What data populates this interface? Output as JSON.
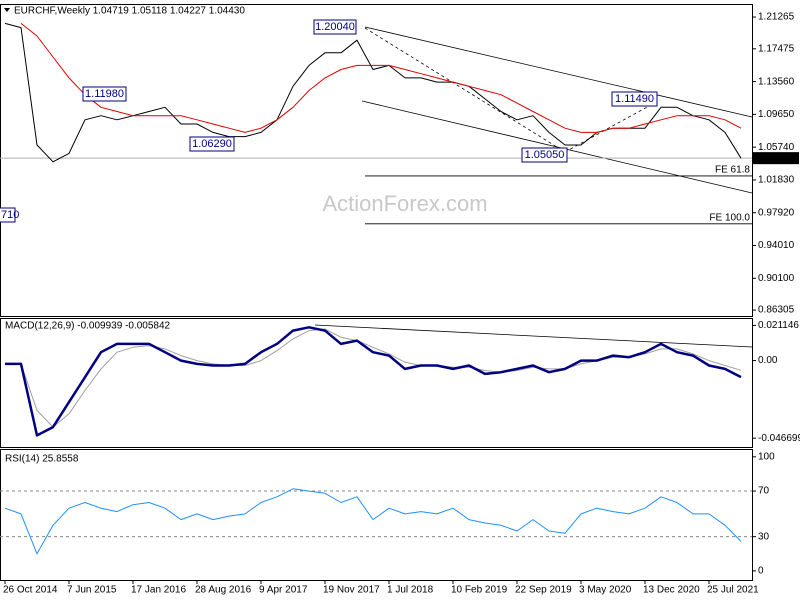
{
  "chart_data": [
    {
      "type": "line",
      "title": "EURCHF,Weekly  1.04719 1.05118 1.04227 1.04430",
      "ylim": [
        0.856,
        1.227
      ],
      "yticks": [
        1.21265,
        1.17475,
        {
          "value": 1.1356,
          "label": "1.13560"
        },
        {
          "value": 1.0965,
          "label": "1.09650"
        },
        {
          "value": 1.0574,
          "label": "1.05740"
        },
        {
          "value": 1.0183,
          "label": "1.01830"
        },
        {
          "value": 0.9792,
          "label": "0.97920"
        },
        {
          "value": 0.9401,
          "label": "0.94010"
        },
        {
          "value": 0.901,
          "label": "0.90100"
        },
        0.86305
      ],
      "series": [
        {
          "color": "#000000",
          "values": [
            1.205,
            1.2,
            1.06,
            1.04,
            1.05,
            1.09,
            1.095,
            1.09,
            1.095,
            1.1,
            1.105,
            1.085,
            1.085,
            1.075,
            1.07,
            1.07,
            1.075,
            1.09,
            1.13,
            1.155,
            1.17,
            1.17,
            1.185,
            1.15,
            1.155,
            1.14,
            1.14,
            1.135,
            1.135,
            1.13,
            1.115,
            1.1,
            1.09,
            1.095,
            1.075,
            1.06,
            1.06,
            1.075,
            1.08,
            1.08,
            1.08,
            1.105,
            1.105,
            1.095,
            1.09,
            1.075,
            1.0443
          ]
        },
        {
          "color": "#e00000",
          "values": [
            null,
            1.205,
            1.19,
            1.165,
            1.14,
            1.12,
            1.105,
            1.1,
            1.095,
            1.095,
            1.095,
            1.095,
            1.09,
            1.085,
            1.08,
            1.075,
            1.08,
            1.09,
            1.105,
            1.125,
            1.14,
            1.15,
            1.155,
            1.155,
            1.155,
            1.15,
            1.145,
            1.14,
            1.135,
            1.13,
            1.125,
            1.12,
            1.11,
            1.1,
            1.09,
            1.08,
            1.075,
            1.075,
            1.08,
            1.08,
            1.085,
            1.09,
            1.095,
            1.095,
            1.095,
            1.09,
            1.08
          ]
        }
      ],
      "last_price": {
        "value": 1.0443,
        "label": "1.04430"
      },
      "fe_levels": [
        {
          "value": 1.0231,
          "label": "FE 61.8"
        },
        {
          "value": 0.966,
          "label": "FE 100.0"
        }
      ],
      "annotations": [
        "1.20040",
        "1.11980",
        "1.06290",
        "1.05050",
        "1.11490",
        "710"
      ],
      "watermark": "ActionForex.com"
    },
    {
      "type": "line",
      "title": "MACD(12,26,9) -0.009939 -0.005842",
      "ylim": [
        -0.052,
        0.025
      ],
      "yticks": [
        0.021146,
        {
          "value": 0,
          "label": "0.00"
        },
        -0.046699
      ],
      "series": [
        {
          "color": "#a0a0a0",
          "width": 1,
          "values": [
            -0.002,
            -0.002,
            -0.03,
            -0.04,
            -0.032,
            -0.018,
            -0.005,
            0.005,
            0.008,
            0.009,
            0.007,
            0.003,
            0,
            -0.002,
            -0.003,
            -0.003,
            0,
            0.006,
            0.013,
            0.018,
            0.019,
            0.014,
            0.012,
            0.008,
            0.004,
            -0.001,
            -0.003,
            -0.003,
            -0.004,
            -0.004,
            -0.006,
            -0.007,
            -0.006,
            -0.004,
            -0.005,
            -0.005,
            -0.002,
            0,
            0.002,
            0.002,
            0.004,
            0.007,
            0.007,
            0.004,
            0,
            -0.003,
            -0.005842
          ]
        },
        {
          "color": "#000080",
          "width": 2.5,
          "values": [
            -0.002,
            -0.002,
            -0.045,
            -0.04,
            -0.025,
            -0.01,
            0.005,
            0.01,
            0.01,
            0.01,
            0.005,
            0,
            -0.002,
            -0.003,
            -0.003,
            -0.002,
            0.005,
            0.01,
            0.018,
            0.02,
            0.018,
            0.01,
            0.012,
            0.005,
            0.003,
            -0.005,
            -0.003,
            -0.003,
            -0.005,
            -0.003,
            -0.008,
            -0.007,
            -0.005,
            -0.003,
            -0.007,
            -0.005,
            0,
            0,
            0.003,
            0.002,
            0.005,
            0.01,
            0.005,
            0.003,
            -0.003,
            -0.005,
            -0.009939
          ]
        }
      ]
    },
    {
      "type": "line",
      "title": "RSI(14) 25.8558",
      "ylim": [
        -8,
        106
      ],
      "yticks": [
        100,
        70,
        30,
        0
      ],
      "levels": [
        70,
        30
      ],
      "categories": [
        "26 Oct 2014",
        null,
        null,
        null,
        "7 Jun 2015",
        null,
        null,
        null,
        "17 Jan 2016",
        null,
        null,
        null,
        "28 Aug 2016",
        null,
        null,
        null,
        "9 Apr 2017",
        null,
        null,
        null,
        "19 Nov 2017",
        null,
        null,
        null,
        "1 Jul 2018",
        null,
        null,
        null,
        "10 Feb 2019",
        null,
        null,
        null,
        "22 Sep 2019",
        null,
        null,
        null,
        "3 May 2020",
        null,
        null,
        null,
        "13 Dec 2020",
        null,
        null,
        null,
        "25 Jul 2021",
        null,
        null
      ],
      "series": [
        {
          "color": "#1e90ff",
          "width": 1,
          "values": [
            55,
            50,
            15,
            40,
            55,
            60,
            55,
            52,
            58,
            60,
            55,
            45,
            50,
            45,
            48,
            50,
            60,
            65,
            72,
            70,
            68,
            60,
            65,
            45,
            55,
            50,
            52,
            50,
            55,
            45,
            42,
            40,
            35,
            45,
            35,
            33,
            50,
            55,
            52,
            50,
            55,
            65,
            60,
            50,
            50,
            40,
            25.8558
          ]
        }
      ]
    }
  ]
}
